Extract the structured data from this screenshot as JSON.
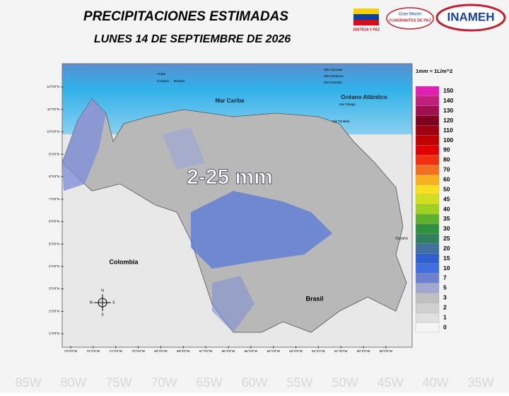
{
  "header": {
    "title": "PRECIPITACIONES ESTIMADAS",
    "date": "LUNES 14 DE SEPTIEMBRE DE 2026"
  },
  "logos": {
    "logo1": "JUSTICIA Y PAZ",
    "logo2_top": "Gran Misión",
    "logo2_main": "CUADRANTES DE PAZ",
    "logo3": "INAMEH"
  },
  "map": {
    "highlight": "2-25 mm",
    "labels": [
      "Mar Caribe",
      "Océano Atlántico",
      "Colombia",
      "Brasil",
      "Guyana"
    ],
    "islands": [
      "Aruba",
      "Curazao",
      "Bonaire",
      "Isla Canouan",
      "Isla Carriacou",
      "Isla Granada",
      "Isla Tobago",
      "Isla Trinidad"
    ],
    "lat_ticks": [
      "12°0'0\"N",
      "11°0'0\"N",
      "10°0'0\"N",
      "9°0'0\"N",
      "8°0'0\"N",
      "7°0'0\"N",
      "6°0'0\"N",
      "5°0'0\"N",
      "4°0'0\"N",
      "3°0'0\"N",
      "2°0'0\"N",
      "1°0'0\"N"
    ],
    "lon_ticks": [
      "73°0'0\"W",
      "72°0'0\"W",
      "71°0'0\"W",
      "70°0'0\"W",
      "69°0'0\"W",
      "68°0'0\"W",
      "67°0'0\"W",
      "66°0'0\"W",
      "65°0'0\"W",
      "64°0'0\"W",
      "63°0'0\"W",
      "62°0'0\"W",
      "61°0'0\"W",
      "60°0'0\"W",
      "59°0'0\"W"
    ],
    "compass": [
      "N",
      "E",
      "S",
      "W"
    ]
  },
  "legend": {
    "title": "1mm = 1L/m^2",
    "items": [
      {
        "label": 150,
        "color": "#e020b0"
      },
      {
        "label": 140,
        "color": "#c0207a"
      },
      {
        "label": 130,
        "color": "#a01050"
      },
      {
        "label": 120,
        "color": "#800020"
      },
      {
        "label": 110,
        "color": "#a00010"
      },
      {
        "label": 100,
        "color": "#c00000"
      },
      {
        "label": 90,
        "color": "#e00000"
      },
      {
        "label": 80,
        "color": "#f03010"
      },
      {
        "label": 70,
        "color": "#f07020"
      },
      {
        "label": 60,
        "color": "#f8b020"
      },
      {
        "label": 50,
        "color": "#f8e020"
      },
      {
        "label": 45,
        "color": "#d0e020"
      },
      {
        "label": 40,
        "color": "#a0d020"
      },
      {
        "label": 35,
        "color": "#60b030"
      },
      {
        "label": 30,
        "color": "#309040"
      },
      {
        "label": 25,
        "color": "#308060"
      },
      {
        "label": 20,
        "color": "#4070a0"
      },
      {
        "label": 15,
        "color": "#3060d0"
      },
      {
        "label": 10,
        "color": "#4070e0"
      },
      {
        "label": 7,
        "color": "#7080d0"
      },
      {
        "label": 5,
        "color": "#a0a8d0"
      },
      {
        "label": 3,
        "color": "#c0c0c0"
      },
      {
        "label": 2,
        "color": "#d0d0d0"
      },
      {
        "label": 1,
        "color": "#e0e0e0"
      },
      {
        "label": 0,
        "color": "#f5f5f5"
      }
    ]
  },
  "background_labels": [
    "85W",
    "80W",
    "75W",
    "70W",
    "65W",
    "60W",
    "55W",
    "50W",
    "45W",
    "40W",
    "35W"
  ]
}
